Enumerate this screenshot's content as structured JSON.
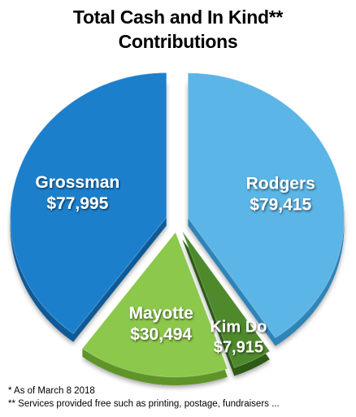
{
  "chart_data": {
    "type": "pie",
    "title_lines": [
      "Total Cash and In Kind**",
      "Contributions"
    ],
    "slices": [
      {
        "name": "Rodgers",
        "value": 79415,
        "value_label": "$79,415",
        "color": "#5bb5e6",
        "side_color": "#2f84b8",
        "exploded": true
      },
      {
        "name": "Kim Do",
        "value": 7915,
        "value_label": "$7,915",
        "color": "#4e8a2c",
        "side_color": "#2e5a16",
        "exploded": true
      },
      {
        "name": "Mayotte",
        "value": 30494,
        "value_label": "$30,494",
        "color": "#8cc84b",
        "side_color": "#5f9428",
        "exploded": true
      },
      {
        "name": "Grossman",
        "value": 77995,
        "value_label": "$77,995",
        "color": "#1c7fcc",
        "side_color": "#0f5a96",
        "exploded": true
      }
    ],
    "legend": "none",
    "style": "3d-exploded-pie"
  },
  "footnotes": [
    "* As of March 8 2018",
    "** Services provided free such as printing, postage, fundraisers ..."
  ]
}
